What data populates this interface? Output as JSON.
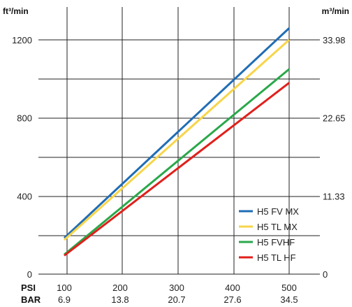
{
  "chart_data": {
    "type": "line",
    "left_axis_unit": "ft³/min",
    "right_axis_unit": "m³/min",
    "x_row_labels": [
      "PSI",
      "BAR"
    ],
    "x_ticks_psi": [
      "100",
      "200",
      "300",
      "400",
      "500"
    ],
    "x_ticks_bar": [
      "6.9",
      "13.8",
      "20.7",
      "27.6",
      "34.5"
    ],
    "y_ticks_left": [
      "0",
      "400",
      "800",
      "1200"
    ],
    "y_ticks_right": [
      "0",
      "11.33",
      "22.65",
      "33.98"
    ],
    "xlim": [
      100,
      500
    ],
    "ylim": [
      0,
      1300
    ],
    "grid": true,
    "legend_position": "bottom-right",
    "series": [
      {
        "name": "H5 FV MX",
        "color": "#1f6db5",
        "x": [
          100,
          500
        ],
        "y": [
          185,
          1260
        ]
      },
      {
        "name": "H5 TL MX",
        "color": "#f7d54a",
        "x": [
          100,
          500
        ],
        "y": [
          175,
          1200
        ]
      },
      {
        "name": "H5 FVHF",
        "color": "#2aa84a",
        "x": [
          100,
          500
        ],
        "y": [
          100,
          1050
        ]
      },
      {
        "name": "H5 TL HF",
        "color": "#e0201b",
        "x": [
          100,
          500
        ],
        "y": [
          95,
          980
        ]
      }
    ]
  }
}
